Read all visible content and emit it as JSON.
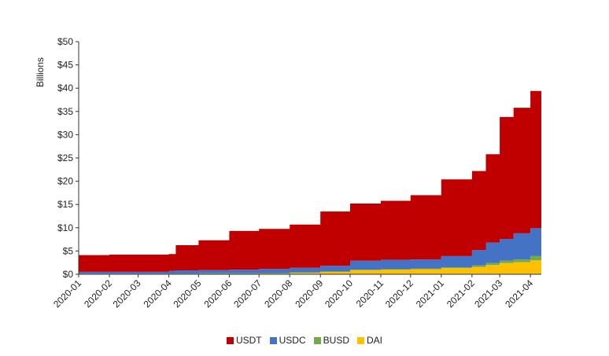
{
  "chart_data": {
    "type": "area",
    "stacked": true,
    "ylabel": "Billions",
    "yticks": [
      "$0",
      "$5",
      "$10",
      "$15",
      "$20",
      "$25",
      "$30",
      "$35",
      "$40",
      "$45",
      "$50"
    ],
    "ylim": [
      0,
      50
    ],
    "xticks": [
      "2020-01",
      "2020-02",
      "2020-03",
      "2020-04",
      "2020-05",
      "2020-06",
      "2020-07",
      "2020-08",
      "2020-09",
      "2020-10",
      "2020-11",
      "2020-12",
      "2021-01",
      "2021-02",
      "2021-03",
      "2021-04"
    ],
    "x": [
      "2020-01-01",
      "2020-02-01",
      "2020-03-01",
      "2020-04-01",
      "2020-04-08",
      "2020-05-01",
      "2020-06-01",
      "2020-07-01",
      "2020-08-01",
      "2020-09-01",
      "2020-10-01",
      "2020-11-01",
      "2020-12-01",
      "2021-01-01",
      "2021-02-01",
      "2021-02-15",
      "2021-03-01",
      "2021-03-15",
      "2021-04-01",
      "2021-04-12"
    ],
    "series": [
      {
        "name": "USDT",
        "color": "#c00000",
        "values": [
          3.6,
          3.7,
          3.7,
          3.6,
          5.4,
          6.4,
          8.3,
          8.6,
          9.3,
          11.7,
          12.3,
          12.7,
          13.8,
          16.5,
          17.0,
          19.0,
          26.2,
          27.0,
          29.5,
          33.2
        ]
      },
      {
        "name": "USDC",
        "color": "#4472c4",
        "values": [
          0.4,
          0.4,
          0.4,
          0.6,
          0.7,
          0.7,
          0.8,
          0.9,
          1.0,
          1.2,
          1.9,
          2.0,
          2.0,
          2.4,
          3.3,
          4.4,
          4.7,
          5.6,
          6.0,
          6.2
        ]
      },
      {
        "name": "BUSD",
        "color": "#70ad47",
        "values": [
          0.02,
          0.02,
          0.02,
          0.05,
          0.05,
          0.1,
          0.1,
          0.1,
          0.1,
          0.1,
          0.1,
          0.1,
          0.1,
          0.2,
          0.3,
          0.4,
          0.5,
          0.6,
          0.9,
          1.9
        ]
      },
      {
        "name": "DAI",
        "color": "#ffc000",
        "values": [
          0.1,
          0.1,
          0.1,
          0.1,
          0.1,
          0.1,
          0.1,
          0.15,
          0.3,
          0.5,
          0.9,
          1.0,
          1.1,
          1.3,
          1.6,
          2.0,
          2.4,
          2.6,
          3.0,
          3.0
        ]
      }
    ],
    "legend_position": "bottom-center",
    "grid": false
  }
}
